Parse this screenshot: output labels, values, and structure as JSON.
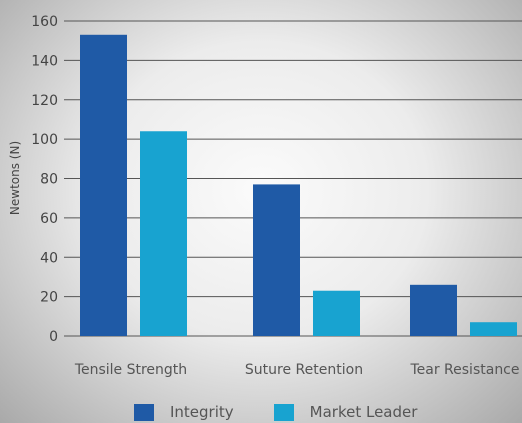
{
  "chart_data": {
    "type": "bar",
    "title": "",
    "xlabel": "",
    "ylabel": "Newtons (N)",
    "ylim": [
      0,
      160
    ],
    "yticks": [
      0,
      20,
      40,
      60,
      80,
      100,
      120,
      140,
      160
    ],
    "grid": true,
    "legend_position": "bottom",
    "categories": [
      "Tensile Strength",
      "Suture Retention",
      "Tear Resistance"
    ],
    "series": [
      {
        "name": "Integrity",
        "color": "#1f5aa6",
        "values": [
          153,
          77,
          26
        ]
      },
      {
        "name": "Market Leader",
        "color": "#18a3d0",
        "values": [
          104,
          23,
          7
        ]
      }
    ]
  }
}
